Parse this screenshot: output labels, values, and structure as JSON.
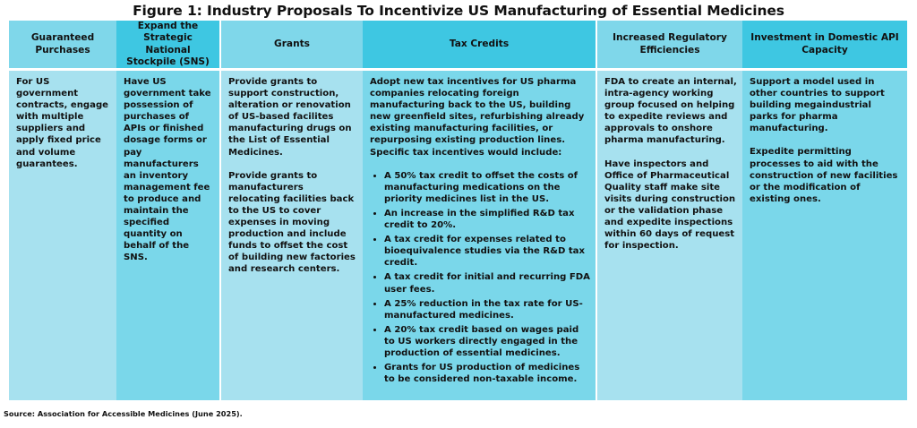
{
  "title": "Figure 1: Industry Proposals To Incentivize US Manufacturing of Essential Medicines",
  "columns": [
    {
      "header": "Guaranteed Purchases",
      "paragraphs": [
        "For US government contracts, engage with multiple suppliers and apply fixed price and volume guarantees."
      ]
    },
    {
      "header": "Expand the Strategic National Stockpile (SNS)",
      "paragraphs": [
        "Have US government take possession of purchases of APIs or finished dosage forms or pay manufacturers an inventory management fee to produce and maintain the specified quantity on behalf of the SNS."
      ]
    },
    {
      "header": "Grants",
      "paragraphs": [
        "Provide grants to support construction, alteration or renovation of US-based facilites manufacturing drugs on the List of Essential Medicines.",
        "Provide grants to manufacturers relocating facilities back to the US to cover expenses in moving production and include funds to offset the cost of building new factories and research centers."
      ]
    },
    {
      "header": "Tax Credits",
      "intro": "Adopt new tax incentives for US pharma companies relocating foreign manufacturing back to the US, building new greenfield sites, refurbishing already existing manufacturing facilities, or repurposing existing production lines. Specific tax incentives would include:",
      "bullets": [
        "A 50% tax credit to offset the costs of manufacturing medications on the priority medicines list in the US.",
        "An increase in the simplified R&D tax credit to 20%.",
        "A tax credit for expenses related to bioequivalence studies via the R&D tax credit.",
        "A tax credit for initial and recurring FDA user fees.",
        "A 25% reduction in the tax rate for US-manufactured medicines.",
        "A 20% tax credit based on wages paid to US workers directly engaged in the production of essential medicines.",
        "Grants for US production of medicines to be considered non-taxable income."
      ]
    },
    {
      "header": "Increased Regulatory Efficiencies",
      "paragraphs": [
        "FDA to create an internal, intra-agency working group focused on helping to expedite reviews and approvals to onshore pharma manufacturing.",
        "Have inspectors and Office of Pharmaceutical Quality staff make site visits during construction or the validation phase and expedite inspections within 60 days of request for inspection."
      ]
    },
    {
      "header": "Investment in Domestic API Capacity",
      "paragraphs": [
        "Support a model used in other countries to support building megaindustrial parks for pharma manufacturing.",
        "Expedite permitting processes to aid with the construction of new facilities or the modification of existing ones."
      ]
    }
  ],
  "source": "Source: Association for Accessible Medicines (June 2025)."
}
